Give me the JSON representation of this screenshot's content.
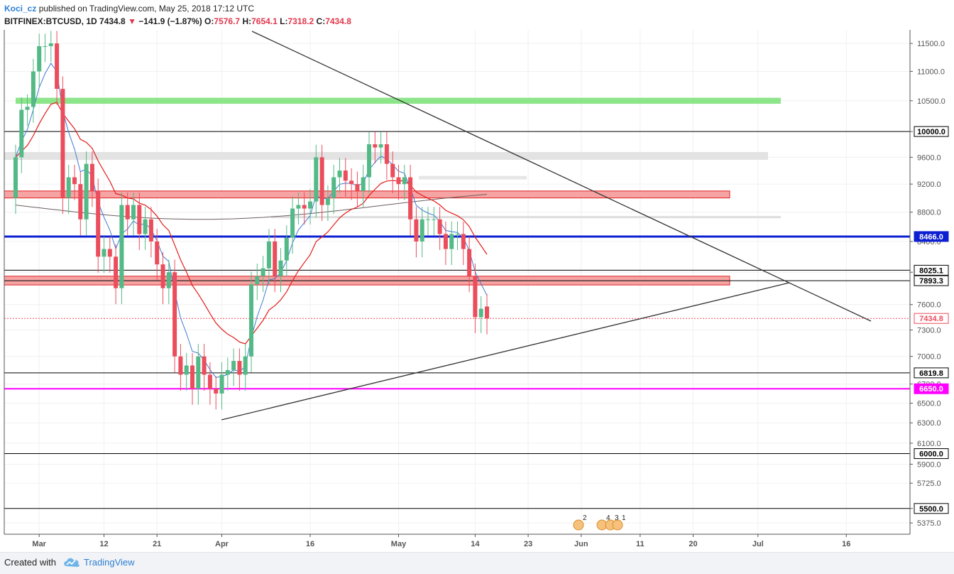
{
  "header": {
    "author": "Koci_cz",
    "published_text": "published on TradingView.com, May 25, 2018 17:12 UTC",
    "symbol": "BITFINEX:BTCUSD, 1D",
    "last": "7434.8",
    "change": "−141.9 (−1.87%)",
    "open_label": "O:",
    "open": "7576.7",
    "high_label": "H:",
    "high": "7654.1",
    "low_label": "L:",
    "low": "7318.2",
    "close_label": "C:",
    "close": "7434.8"
  },
  "footer": {
    "created_with": "Created with",
    "brand": "TradingView"
  },
  "colors": {
    "up": "#53b987",
    "down": "#eb4d5c",
    "ema_fast": "#3d7bd4",
    "ema_slow": "#e31c1c",
    "sma_long": "#6d5e5e",
    "support_blue": "#0c1fd1",
    "support_magenta": "#ff00ff",
    "zone_red": "#f6a3a3",
    "zone_green": "#8de58a",
    "zone_grey": "#e3e3e3"
  },
  "chart_data": {
    "type": "candlestick",
    "symbol": "BITFINEX:BTCUSD",
    "interval": "1D",
    "y_scale": "log",
    "ylim": [
      5280,
      11750
    ],
    "y_ticks": [
      5375,
      5500,
      5725,
      5900,
      6100,
      6300,
      6500,
      6700,
      7000,
      7300,
      7600,
      8000,
      8400,
      8800,
      9200,
      9600,
      10000,
      10500,
      11000,
      11500
    ],
    "y_tick_labels": [
      "5375.0",
      "5500.0",
      "5725.0",
      "5900.0",
      "6100.0",
      "6300.0",
      "6500.0",
      "6700.0",
      "7000.0",
      "7300.0",
      "7600.0",
      "8000.0",
      "8400.0",
      "8800.0",
      "9200.0",
      "9600.0",
      "10000.0",
      "10500.0",
      "11000.0",
      "11500.0"
    ],
    "x_labels": [
      {
        "label": "Mar",
        "date": "2018-03-01"
      },
      {
        "label": "12",
        "date": "2018-03-12"
      },
      {
        "label": "21",
        "date": "2018-03-21"
      },
      {
        "label": "Apr",
        "date": "2018-04-01"
      },
      {
        "label": "16",
        "date": "2018-04-16"
      },
      {
        "label": "May",
        "date": "2018-05-01"
      },
      {
        "label": "14",
        "date": "2018-05-14"
      },
      {
        "label": "23",
        "date": "2018-05-23"
      },
      {
        "label": "Jun",
        "date": "2018-06-01"
      },
      {
        "label": "11",
        "date": "2018-06-11"
      },
      {
        "label": "20",
        "date": "2018-06-20"
      },
      {
        "label": "Jul",
        "date": "2018-07-01"
      },
      {
        "label": "16",
        "date": "2018-07-16"
      }
    ],
    "candles_start": "2018-02-25",
    "closes": [
      9600,
      10350,
      10400,
      11000,
      11450,
      11450,
      11500,
      10700,
      9000,
      9300,
      9200,
      8700,
      9500,
      9100,
      8200,
      8300,
      8200,
      7800,
      8900,
      8700,
      8900,
      8500,
      8700,
      8400,
      8100,
      7800,
      8000,
      7000,
      6800,
      6900,
      6650,
      7000,
      6800,
      6650,
      6600,
      6800,
      6850,
      6950,
      6800,
      7000,
      7850,
      7950,
      8050,
      8400,
      7950,
      8150,
      8450,
      8850,
      8900,
      8850,
      8950,
      9600,
      8900,
      9000,
      9300,
      9400,
      9250,
      9200,
      9100,
      9300,
      9800,
      9750,
      9800,
      9500,
      9300,
      9200,
      9300,
      8700,
      8400,
      8700,
      8700,
      8700,
      8500,
      8300,
      8500,
      8500,
      8300,
      7950,
      7450,
      7550,
      7434.8
    ],
    "opens": [
      9000,
      9600,
      10350,
      10400,
      11000,
      11450,
      11450,
      11500,
      10700,
      9000,
      9300,
      9200,
      8700,
      9500,
      9100,
      8200,
      8300,
      8200,
      7800,
      8900,
      8700,
      8900,
      8500,
      8700,
      8400,
      8100,
      7800,
      8000,
      7000,
      6800,
      6900,
      6650,
      7000,
      6800,
      6650,
      6600,
      6800,
      6850,
      6950,
      6800,
      7000,
      7850,
      7950,
      8050,
      8400,
      7950,
      8150,
      8450,
      8850,
      8900,
      8850,
      8950,
      9600,
      8900,
      9000,
      9300,
      9400,
      9250,
      9200,
      9100,
      9300,
      9800,
      9750,
      9800,
      9500,
      9300,
      9200,
      9300,
      8700,
      8400,
      8700,
      8700,
      8700,
      8500,
      8300,
      8500,
      8500,
      8300,
      7950,
      7450,
      7576.7
    ],
    "highlight_levels": [
      {
        "value": 10000.0,
        "label": "10000.0",
        "color": "#000000"
      },
      {
        "value": 8466.0,
        "label": "8466.0",
        "color": "#0c1fd1"
      },
      {
        "value": 8025.1,
        "label": "8025.1",
        "color": "#000000"
      },
      {
        "value": 7893.3,
        "label": "7893.3",
        "color": "#000000"
      },
      {
        "value": 7434.8,
        "label": "7434.8",
        "color": "#eb4d5c"
      },
      {
        "value": 6819.8,
        "label": "6819.8",
        "color": "#000000"
      },
      {
        "value": 6650.0,
        "label": "6650.0",
        "color": "#ff00ff"
      },
      {
        "value": 6000.0,
        "label": "6000.0",
        "color": "#000000"
      },
      {
        "value": 5500.0,
        "label": "5500.0",
        "color": "#000000"
      }
    ],
    "zones": [
      {
        "from": 10450,
        "to": 10550,
        "color": "#8de58a"
      },
      {
        "from": 9560,
        "to": 9680,
        "color": "#e3e3e3"
      },
      {
        "from": 9000,
        "to": 9100,
        "color": "#f6a3a3"
      },
      {
        "from": 7840,
        "to": 7950,
        "color": "#f6a3a3"
      }
    ],
    "event_markers": [
      "2",
      "4",
      "3",
      "1"
    ]
  }
}
